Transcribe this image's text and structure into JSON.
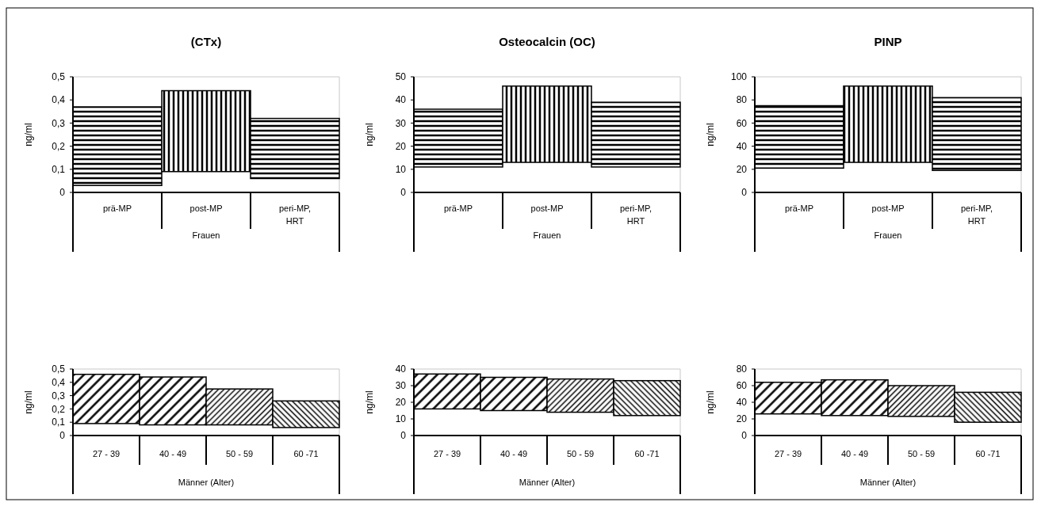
{
  "chart_data": [
    {
      "type": "bar",
      "title": "(CTx)",
      "ylabel": "ng/ml",
      "xlabel": "Frauen",
      "categories": [
        "prä-MP",
        "post-MP",
        "peri-MP, HRT"
      ],
      "base": [
        0.03,
        0.09,
        0.06
      ],
      "values": [
        0.34,
        0.35,
        0.26
      ],
      "color": "#000000",
      "ylim": [
        0,
        0.5
      ],
      "yticks": [
        {
          "value": 0,
          "label": "0"
        },
        {
          "value": 0.1,
          "label": "0,1"
        },
        {
          "value": 0.2,
          "label": "0,2"
        },
        {
          "value": 0.3,
          "label": "0,3"
        },
        {
          "value": 0.4,
          "label": "0,4"
        },
        {
          "value": 0.5,
          "label": "0,5"
        }
      ]
    },
    {
      "type": "bar",
      "title": "Osteocalcin (OC)",
      "ylabel": "ng/ml",
      "xlabel": "Frauen",
      "categories": [
        "prä-MP",
        "post-MP",
        "peri-MP, HRT"
      ],
      "base": [
        11,
        13,
        11
      ],
      "values": [
        25,
        33,
        28
      ],
      "color": "#000000",
      "ylim": [
        0,
        50
      ],
      "yticks": [
        0,
        10,
        20,
        30,
        40,
        50
      ]
    },
    {
      "type": "bar",
      "title": "PINP",
      "ylabel": "ng/ml",
      "xlabel": "Frauen",
      "categories": [
        "prä-MP",
        "post-MP",
        "peri-MP, HRT"
      ],
      "base": [
        21,
        26,
        19
      ],
      "values": [
        54,
        66,
        63
      ],
      "color": "#000000",
      "ylim": [
        0,
        100
      ],
      "yticks": [
        0,
        20,
        40,
        60,
        80,
        100
      ]
    },
    {
      "type": "bar",
      "ylabel": "ng/ml",
      "xlabel": "Männer (Alter)",
      "categories": [
        "27 - 39",
        "40 - 49",
        "50 - 59",
        "60 -71"
      ],
      "base": [
        0.09,
        0.08,
        0.08,
        0.06
      ],
      "values": [
        0.37,
        0.36,
        0.27,
        0.2
      ],
      "color": "#000000",
      "ylim": [
        0,
        0.5
      ],
      "yticks": [
        {
          "value": 0,
          "label": "0"
        },
        {
          "value": 0.1,
          "label": "0,1"
        },
        {
          "value": 0.2,
          "label": "0,2"
        },
        {
          "value": 0.3,
          "label": "0,3"
        },
        {
          "value": 0.4,
          "label": "0,4"
        },
        {
          "value": 0.5,
          "label": "0,5"
        }
      ]
    },
    {
      "type": "bar",
      "ylabel": "ng/ml",
      "xlabel": "Männer (Alter)",
      "categories": [
        "27 - 39",
        "40 - 49",
        "50 - 59",
        "60 -71"
      ],
      "base": [
        16,
        15,
        14,
        12
      ],
      "values": [
        21,
        20,
        20,
        21
      ],
      "color": "#000000",
      "ylim": [
        0,
        40
      ],
      "yticks": [
        0,
        10,
        20,
        30,
        40
      ]
    },
    {
      "type": "bar",
      "ylabel": "ng/ml",
      "xlabel": "Männer (Alter)",
      "categories": [
        "27 - 39",
        "40 - 49",
        "50 - 59",
        "60 -71"
      ],
      "base": [
        26,
        24,
        23,
        16
      ],
      "values": [
        38,
        43,
        37,
        36
      ],
      "color": "#000000",
      "ylim": [
        0,
        80
      ],
      "yticks": [
        0,
        20,
        40,
        60,
        80
      ]
    }
  ]
}
